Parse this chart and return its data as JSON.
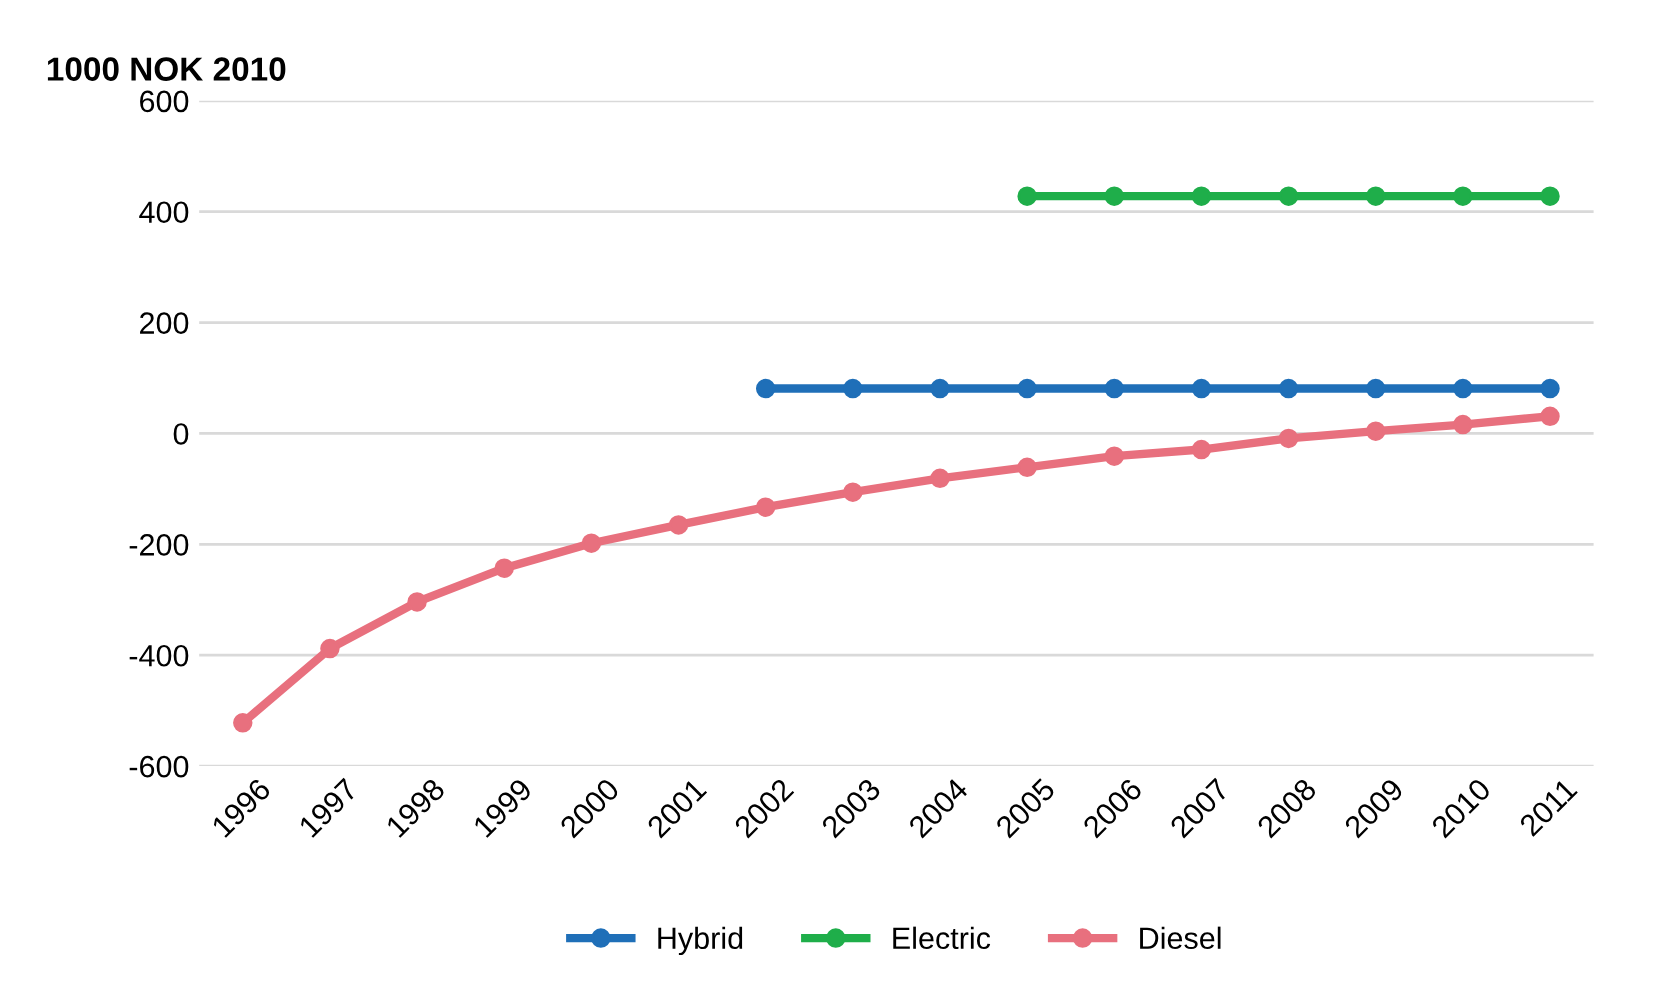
{
  "chart_data": {
    "type": "line",
    "ylabel": "1000 NOK 2010",
    "categories": [
      "1996",
      "1997",
      "1998",
      "1999",
      "2000",
      "2001",
      "2002",
      "2003",
      "2004",
      "2005",
      "2006",
      "2007",
      "2008",
      "2009",
      "2010",
      "2011"
    ],
    "series": [
      {
        "name": "Hybrid",
        "color": "#1f6fb8",
        "values": [
          null,
          null,
          null,
          null,
          null,
          null,
          81,
          81,
          81,
          81,
          81,
          81,
          81,
          81,
          81,
          81
        ]
      },
      {
        "name": "Electric",
        "color": "#1fae4a",
        "values": [
          null,
          null,
          null,
          null,
          null,
          null,
          null,
          null,
          null,
          428,
          428,
          428,
          428,
          428,
          428,
          428
        ]
      },
      {
        "name": "Diesel",
        "color": "#e8707e",
        "values": [
          -522,
          -388,
          -304,
          -243,
          -198,
          -165,
          -133,
          -106,
          -81,
          -61,
          -41,
          -29,
          -9,
          4,
          16,
          31
        ]
      }
    ],
    "ylim": [
      -600,
      600
    ],
    "yticks": [
      -600,
      -400,
      -200,
      0,
      200,
      400,
      600
    ],
    "grid": "y",
    "legend": "bottom",
    "marker": "circle",
    "line_style": "solid"
  }
}
